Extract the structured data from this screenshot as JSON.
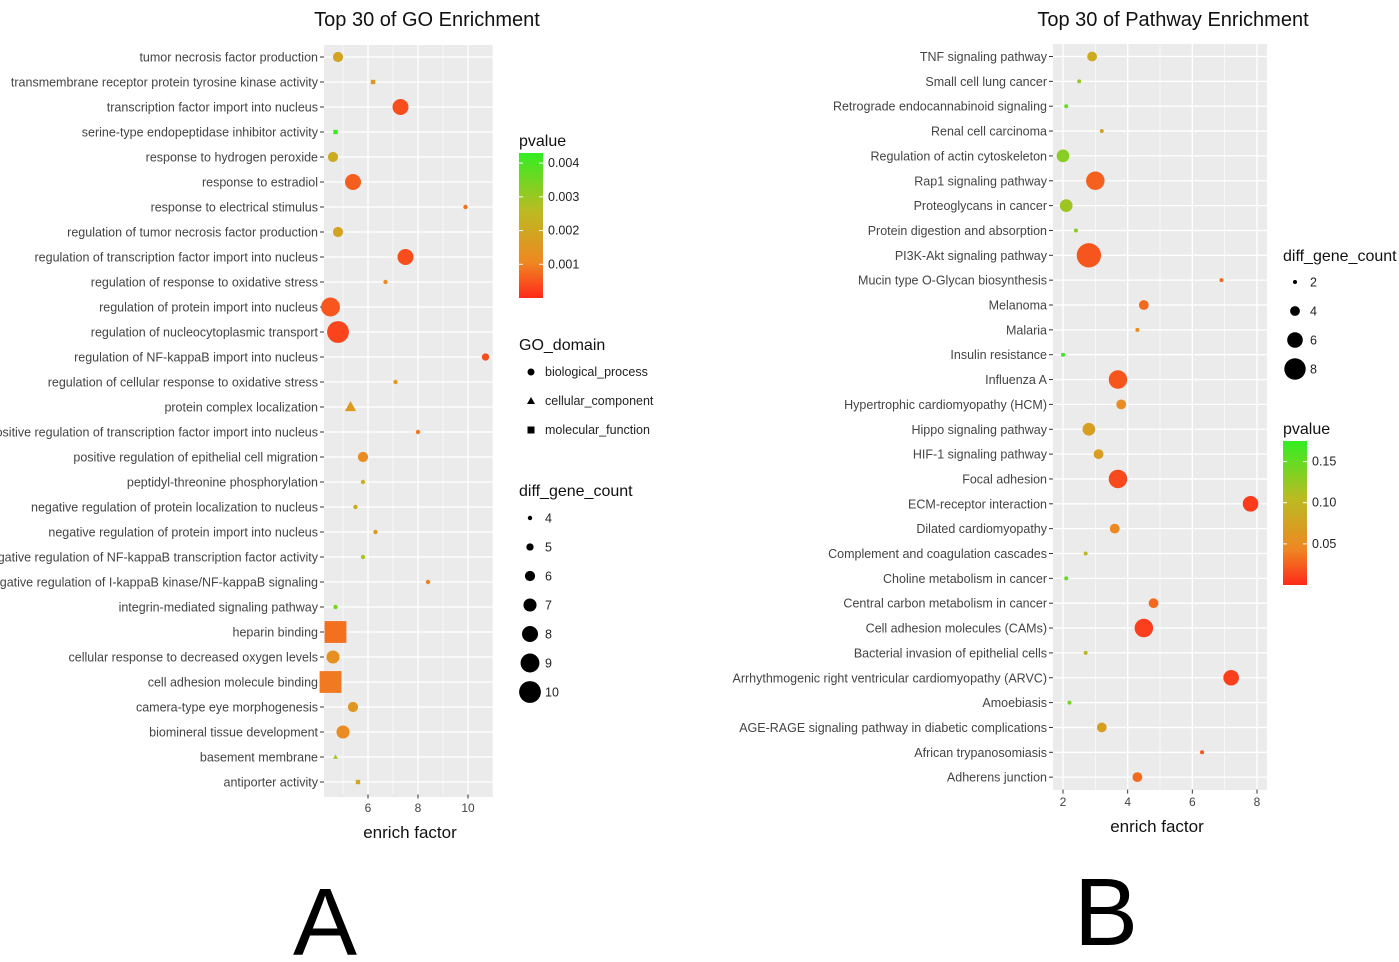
{
  "panels": {
    "a": "A",
    "b": "B"
  },
  "chart_data": [
    {
      "type": "scatter",
      "title": "Top 30 of GO Enrichment",
      "xlabel": "enrich factor",
      "ylabel": "",
      "xlim": [
        4.3,
        11.0
      ],
      "xticks": [
        "6",
        "8",
        "10"
      ],
      "grid": true,
      "points": [
        {
          "term": "tumor necrosis factor production",
          "x": 4.8,
          "p": 0.0019,
          "count": 6,
          "domain": "biological_process"
        },
        {
          "term": "transmembrane receptor protein tyrosine kinase activity",
          "x": 6.2,
          "p": 0.0015,
          "count": 4,
          "domain": "molecular_function"
        },
        {
          "term": "transcription factor import into nucleus",
          "x": 7.3,
          "p": 0.0004,
          "count": 8,
          "domain": "biological_process"
        },
        {
          "term": "serine-type endopeptidase inhibitor activity",
          "x": 4.7,
          "p": 0.0042,
          "count": 4,
          "domain": "molecular_function"
        },
        {
          "term": "response to hydrogen peroxide",
          "x": 4.6,
          "p": 0.0021,
          "count": 6,
          "domain": "biological_process"
        },
        {
          "term": "response to estradiol",
          "x": 5.4,
          "p": 0.0006,
          "count": 8,
          "domain": "biological_process"
        },
        {
          "term": "response to electrical stimulus",
          "x": 9.9,
          "p": 0.0008,
          "count": 4,
          "domain": "biological_process"
        },
        {
          "term": "regulation of tumor necrosis factor production",
          "x": 4.8,
          "p": 0.0019,
          "count": 6,
          "domain": "biological_process"
        },
        {
          "term": "regulation of transcription factor import into nucleus",
          "x": 7.5,
          "p": 0.0004,
          "count": 8,
          "domain": "biological_process"
        },
        {
          "term": "regulation of response to oxidative stress",
          "x": 6.7,
          "p": 0.0012,
          "count": 4,
          "domain": "biological_process"
        },
        {
          "term": "regulation of protein import into nucleus",
          "x": 4.5,
          "p": 0.0005,
          "count": 9,
          "domain": "biological_process"
        },
        {
          "term": "regulation of nucleocytoplasmic transport",
          "x": 4.8,
          "p": 0.0003,
          "count": 10,
          "domain": "biological_process"
        },
        {
          "term": "regulation of NF-kappaB import into nucleus",
          "x": 10.7,
          "p": 0.0004,
          "count": 5,
          "domain": "biological_process"
        },
        {
          "term": "regulation of cellular response to oxidative stress",
          "x": 7.1,
          "p": 0.0016,
          "count": 4,
          "domain": "biological_process"
        },
        {
          "term": "protein complex localization",
          "x": 5.3,
          "p": 0.0016,
          "count": 6,
          "domain": "cellular_component"
        },
        {
          "term": "positive regulation of transcription factor import into nucleus",
          "x": 8.0,
          "p": 0.0009,
          "count": 4,
          "domain": "biological_process"
        },
        {
          "term": "positive regulation of epithelial cell migration",
          "x": 5.8,
          "p": 0.0012,
          "count": 6,
          "domain": "biological_process"
        },
        {
          "term": "peptidyl-threonine phosphorylation",
          "x": 5.8,
          "p": 0.0022,
          "count": 4,
          "domain": "biological_process"
        },
        {
          "term": "negative regulation of protein localization to nucleus",
          "x": 5.5,
          "p": 0.0021,
          "count": 4,
          "domain": "biological_process"
        },
        {
          "term": "negative regulation of protein import into nucleus",
          "x": 6.3,
          "p": 0.0016,
          "count": 4,
          "domain": "biological_process"
        },
        {
          "term": "negative regulation of NF-kappaB transcription factor activity",
          "x": 5.8,
          "p": 0.0028,
          "count": 4,
          "domain": "biological_process"
        },
        {
          "term": "negative regulation of I-kappaB kinase/NF-kappaB signaling",
          "x": 8.4,
          "p": 0.001,
          "count": 4,
          "domain": "biological_process"
        },
        {
          "term": "integrin-mediated signaling pathway",
          "x": 4.7,
          "p": 0.0034,
          "count": 4,
          "domain": "biological_process"
        },
        {
          "term": "heparin binding",
          "x": 4.7,
          "p": 0.0008,
          "count": 10,
          "domain": "molecular_function"
        },
        {
          "term": "cellular response to decreased oxygen levels",
          "x": 4.6,
          "p": 0.0013,
          "count": 7,
          "domain": "biological_process"
        },
        {
          "term": "cell adhesion molecule binding",
          "x": 4.5,
          "p": 0.0009,
          "count": 10,
          "domain": "molecular_function"
        },
        {
          "term": "camera-type eye morphogenesis",
          "x": 5.4,
          "p": 0.0015,
          "count": 6,
          "domain": "biological_process"
        },
        {
          "term": "biomineral tissue development",
          "x": 5.0,
          "p": 0.0012,
          "count": 7,
          "domain": "biological_process"
        },
        {
          "term": "basement membrane",
          "x": 4.7,
          "p": 0.003,
          "count": 4,
          "domain": "cellular_component"
        },
        {
          "term": "antiporter activity",
          "x": 5.6,
          "p": 0.002,
          "count": 4,
          "domain": "molecular_function"
        }
      ],
      "legend_pvalue": {
        "title": "pvalue",
        "ticks": [
          "0.004",
          "0.003",
          "0.002",
          "0.001"
        ],
        "range": [
          0.0,
          0.0043
        ]
      },
      "legend_domain": {
        "title": "GO_domain",
        "items": [
          "biological_process",
          "cellular_component",
          "molecular_function"
        ]
      },
      "legend_count": {
        "title": "diff_gene_count",
        "items": [
          "4",
          "5",
          "6",
          "7",
          "8",
          "9",
          "10"
        ]
      }
    },
    {
      "type": "scatter",
      "title": "Top 30 of Pathway Enrichment",
      "xlabel": "enrich factor",
      "ylabel": "",
      "xlim": [
        1.7,
        8.1
      ],
      "xticks": [
        "2",
        "4",
        "6",
        "8"
      ],
      "grid": true,
      "points": [
        {
          "term": "TNF signaling pathway",
          "x": 2.9,
          "p": 0.085,
          "count": 4
        },
        {
          "term": "Small cell lung cancer",
          "x": 2.5,
          "p": 0.12,
          "count": 2
        },
        {
          "term": "Retrograde endocannabinoid signaling",
          "x": 2.1,
          "p": 0.15,
          "count": 2
        },
        {
          "term": "Renal cell carcinoma",
          "x": 3.2,
          "p": 0.075,
          "count": 2
        },
        {
          "term": "Regulation of actin cytoskeleton",
          "x": 2.0,
          "p": 0.13,
          "count": 5
        },
        {
          "term": "Rap1 signaling pathway",
          "x": 3.0,
          "p": 0.025,
          "count": 7
        },
        {
          "term": "Proteoglycans in cancer",
          "x": 2.1,
          "p": 0.12,
          "count": 5
        },
        {
          "term": "Protein digestion and absorption",
          "x": 2.4,
          "p": 0.13,
          "count": 2
        },
        {
          "term": "PI3K-Akt signaling pathway",
          "x": 2.8,
          "p": 0.02,
          "count": 9
        },
        {
          "term": "Mucin type O-Glycan biosynthesis",
          "x": 6.9,
          "p": 0.03,
          "count": 2
        },
        {
          "term": "Melanoma",
          "x": 4.5,
          "p": 0.03,
          "count": 4
        },
        {
          "term": "Malaria",
          "x": 4.3,
          "p": 0.05,
          "count": 2
        },
        {
          "term": "Insulin resistance",
          "x": 2.0,
          "p": 0.17,
          "count": 2
        },
        {
          "term": "Influenza A",
          "x": 3.7,
          "p": 0.02,
          "count": 7
        },
        {
          "term": "Hypertrophic cardiomyopathy (HCM)",
          "x": 3.8,
          "p": 0.05,
          "count": 4
        },
        {
          "term": "Hippo signaling pathway",
          "x": 2.8,
          "p": 0.07,
          "count": 5
        },
        {
          "term": "HIF-1 signaling pathway",
          "x": 3.1,
          "p": 0.07,
          "count": 4
        },
        {
          "term": "Focal adhesion",
          "x": 3.7,
          "p": 0.015,
          "count": 7
        },
        {
          "term": "ECM-receptor interaction",
          "x": 7.8,
          "p": 0.008,
          "count": 6
        },
        {
          "term": "Dilated cardiomyopathy",
          "x": 3.6,
          "p": 0.045,
          "count": 4
        },
        {
          "term": "Complement and coagulation cascades",
          "x": 2.7,
          "p": 0.1,
          "count": 2
        },
        {
          "term": "Choline metabolism in cancer",
          "x": 2.1,
          "p": 0.15,
          "count": 2
        },
        {
          "term": "Central carbon metabolism in cancer",
          "x": 4.8,
          "p": 0.03,
          "count": 4
        },
        {
          "term": "Cell adhesion molecules (CAMs)",
          "x": 4.5,
          "p": 0.01,
          "count": 7
        },
        {
          "term": "Bacterial invasion of epithelial cells",
          "x": 2.7,
          "p": 0.1,
          "count": 2
        },
        {
          "term": "Arrhythmogenic right ventricular cardiomyopathy (ARVC)",
          "x": 7.2,
          "p": 0.01,
          "count": 6
        },
        {
          "term": "Amoebiasis",
          "x": 2.2,
          "p": 0.14,
          "count": 2
        },
        {
          "term": "AGE-RAGE signaling pathway in diabetic complications",
          "x": 3.2,
          "p": 0.07,
          "count": 4
        },
        {
          "term": "African trypanosomiasis",
          "x": 6.3,
          "p": 0.02,
          "count": 2
        },
        {
          "term": "Adherens junction",
          "x": 4.3,
          "p": 0.03,
          "count": 4
        }
      ],
      "legend_count": {
        "title": "diff_gene_count",
        "items": [
          "2",
          "4",
          "6",
          "8"
        ]
      },
      "legend_pvalue": {
        "title": "pvalue",
        "ticks": [
          "0.15",
          "0.10",
          "0.05"
        ],
        "range": [
          0.0,
          0.175
        ]
      }
    }
  ]
}
